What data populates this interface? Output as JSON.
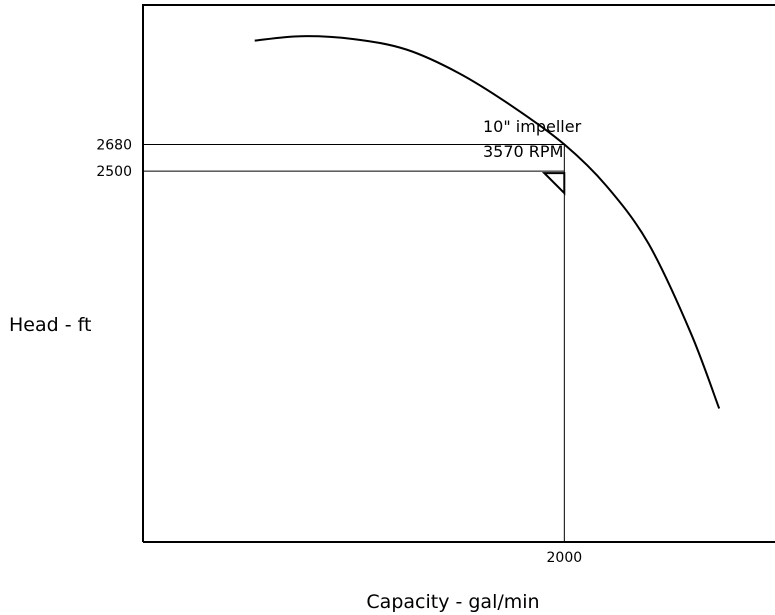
{
  "chart_data": {
    "type": "line",
    "title": "",
    "xlabel": "Capacity - gal/min",
    "ylabel": "Head - ft",
    "xlim": [
      0,
      3000
    ],
    "ylim": [
      0,
      3620
    ],
    "x_ticks": [
      {
        "value": 2000,
        "label": "2000"
      }
    ],
    "y_ticks": [
      {
        "value": 2680,
        "label": "2680"
      },
      {
        "value": 2500,
        "label": "2500"
      }
    ],
    "series": [
      {
        "name": "",
        "points": [
          [
            530,
            3380
          ],
          [
            750,
            3410
          ],
          [
            1000,
            3390
          ],
          [
            1250,
            3320
          ],
          [
            1500,
            3160
          ],
          [
            1750,
            2940
          ],
          [
            2000,
            2680
          ],
          [
            2200,
            2400
          ],
          [
            2400,
            2010
          ],
          [
            2600,
            1410
          ],
          [
            2735,
            900
          ]
        ]
      }
    ],
    "reference_lines": [
      {
        "axis": "y",
        "value": 2680,
        "x_to": 2000
      },
      {
        "axis": "y",
        "value": 2500,
        "x_to": 2000
      },
      {
        "axis": "x",
        "value": 2000,
        "y_to": 2680
      }
    ],
    "annotations": [
      {
        "lines": [
          "10\" impeller",
          "3570 RPM"
        ],
        "x": 1795,
        "y": 3320
      }
    ],
    "marker": {
      "type": "triangle",
      "x": 2000,
      "y": 2500
    },
    "grid": false,
    "legend": "none"
  }
}
